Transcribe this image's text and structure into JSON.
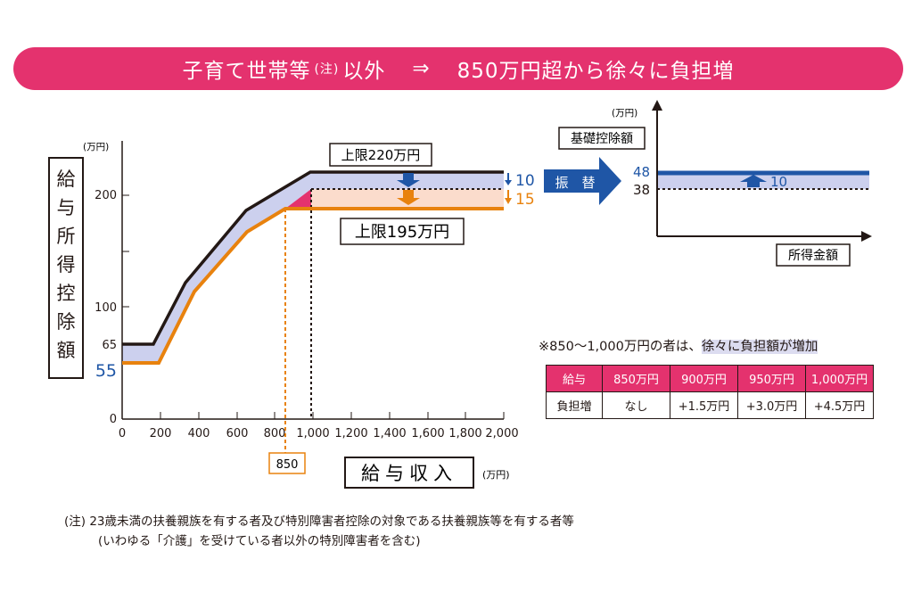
{
  "banner": {
    "prefix": "子育て世帯等",
    "note": "(注)",
    "middle": "以外",
    "arrow": "⇒",
    "suffix": "850万円超から徐々に負担増"
  },
  "main_chart": {
    "y_unit": "(万円)",
    "y_title_chars": [
      "給",
      "与",
      "所",
      "得",
      "控",
      "除",
      "額"
    ],
    "y_ticks": [
      "0",
      "100",
      "200"
    ],
    "y_ticks_left": [
      "65"
    ],
    "y_old_low": "55",
    "x_ticks": [
      "0",
      "200",
      "400",
      "600",
      "800",
      "1,000",
      "1,200",
      "1,400",
      "1,600",
      "1,800",
      "2,000"
    ],
    "x_title": "給与収入",
    "x_unit": "(万円)",
    "old_cap_label": "上限220万円",
    "new_cap_label": "上限195万円",
    "diff_top": "10",
    "diff_bottom": "15",
    "threshold_label": "850"
  },
  "shift_label": "振　替",
  "basic_chart": {
    "y_unit": "(万円)",
    "title": "基礎控除額",
    "val_new": "48",
    "val_old": "38",
    "diff": "10",
    "x_title": "所得金額"
  },
  "burden": {
    "note_prefix": "※850〜1,000万円の者は、",
    "note_highlight": "徐々に負担額が増加",
    "header": [
      "給与",
      "850万円",
      "900万円",
      "950万円",
      "1,000万円"
    ],
    "row": [
      "負担増",
      "なし",
      "+1.5万円",
      "+3.0万円",
      "+4.5万円"
    ]
  },
  "footnote": {
    "line1": "(注)  23歳未満の扶養親族を有する者及び特別障害者控除の対象である扶養親族等を有する者等",
    "line2": "(いわゆる「介護」を受けている者以外の特別障害者を含む)"
  },
  "colors": {
    "pink": "#e4326e",
    "blue": "#1f56a6",
    "orange": "#e8820e",
    "lavender": "#ccd0ee",
    "peach": "#fbdccc"
  }
}
